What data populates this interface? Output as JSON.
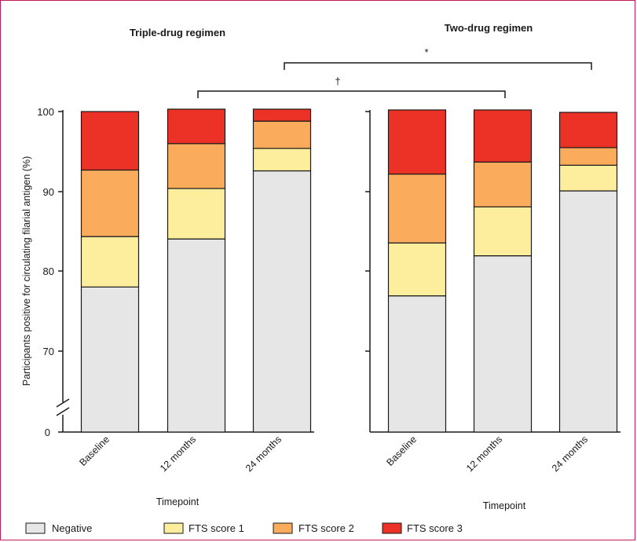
{
  "chart_data": {
    "type": "bar",
    "stacked": true,
    "ylabel": "Participants positive for circulating filarial antigen (%)",
    "y_ticks": [
      "0",
      "70",
      "80",
      "90",
      "100"
    ],
    "ylim": [
      65,
      100
    ],
    "y_axis_break": true,
    "colors": {
      "Negative": "#e6e6e6",
      "FTS score 1": "#fdee9d",
      "FTS score 2": "#fbab5c",
      "FTS score 3": "#ec3126"
    },
    "legend": [
      "Negative",
      "FTS score 1",
      "FTS score 2",
      "FTS score 3"
    ],
    "legend_position": "bottom",
    "panels": [
      {
        "title": "Triple-drug regimen",
        "xlabel": "Timepoint",
        "categories": [
          "Baseline",
          "12 months",
          "24 months"
        ],
        "series": [
          {
            "name": "Negative",
            "values": [
              78.0,
              84.0,
              92.5
            ]
          },
          {
            "name": "FTS score 1",
            "values": [
              6.3,
              6.3,
              2.8
            ]
          },
          {
            "name": "FTS score 2",
            "values": [
              8.3,
              5.6,
              3.4
            ]
          },
          {
            "name": "FTS score 3",
            "values": [
              7.3,
              4.3,
              1.5
            ]
          }
        ]
      },
      {
        "title": "Two-drug regimen",
        "xlabel": "Timepoint",
        "categories": [
          "Baseline",
          "12 months",
          "24 months"
        ],
        "series": [
          {
            "name": "Negative",
            "values": [
              76.9,
              81.9,
              90.0
            ]
          },
          {
            "name": "FTS score 1",
            "values": [
              6.6,
              6.1,
              3.2
            ]
          },
          {
            "name": "FTS score 2",
            "values": [
              8.6,
              5.6,
              2.2
            ]
          },
          {
            "name": "FTS score 3",
            "values": [
              8.0,
              6.5,
              4.4
            ]
          }
        ]
      }
    ],
    "annotations": [
      {
        "symbol": "*",
        "from": "Triple-drug regimen 24 months",
        "to": "Two-drug regimen 24 months"
      },
      {
        "symbol": "†",
        "from": "Triple-drug regimen 12 months",
        "to": "Two-drug regimen 12 months"
      }
    ]
  }
}
